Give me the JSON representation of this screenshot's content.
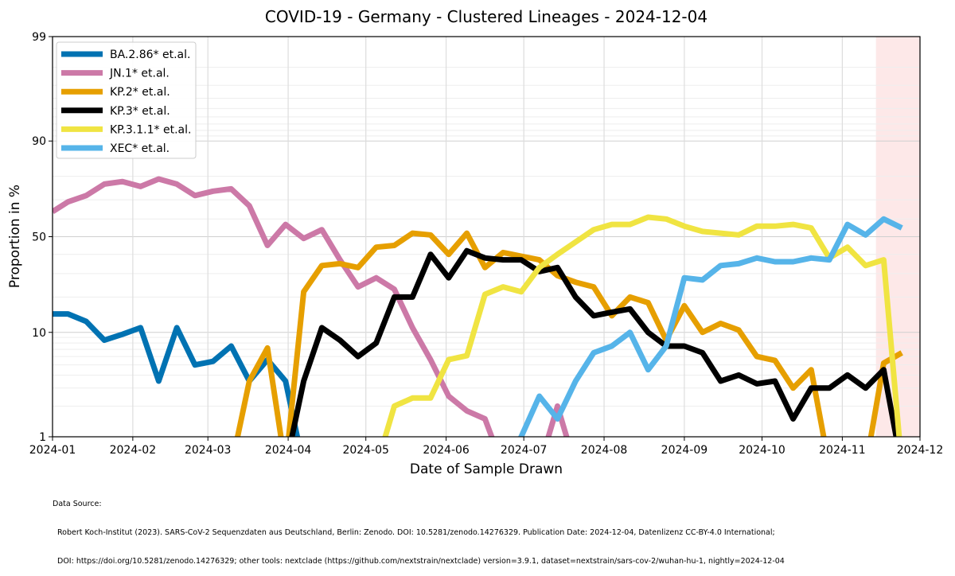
{
  "chart_data": {
    "type": "line",
    "title": "COVID-19 - Germany - Clustered Lineages - 2024-12-04",
    "xlabel": "Date of Sample Drawn",
    "ylabel": "Proportion in %",
    "y_scale": "logit",
    "y_ticks": [
      "1",
      "10",
      "50",
      "90",
      "99"
    ],
    "y_tick_values": [
      1,
      10,
      50,
      90,
      99
    ],
    "x_ticks": [
      "2024-01",
      "2024-02",
      "2024-03",
      "2024-04",
      "2024-05",
      "2024-06",
      "2024-07",
      "2024-08",
      "2024-09",
      "2024-10",
      "2024-11",
      "2024-12"
    ],
    "x_range": [
      "2024-01-01",
      "2024-12-01"
    ],
    "ylim": [
      1,
      99
    ],
    "grid": true,
    "legend_position": "top-left",
    "shaded_region": [
      "2024-11-14",
      "2024-12-01"
    ],
    "shaded_color": "#fde8e8",
    "x_dates": [
      "2024-01-01",
      "2024-01-07",
      "2024-01-14",
      "2024-01-21",
      "2024-01-28",
      "2024-02-04",
      "2024-02-11",
      "2024-02-18",
      "2024-02-25",
      "2024-03-03",
      "2024-03-10",
      "2024-03-17",
      "2024-03-24",
      "2024-03-31",
      "2024-04-07",
      "2024-04-14",
      "2024-04-21",
      "2024-04-28",
      "2024-05-05",
      "2024-05-12",
      "2024-05-19",
      "2024-05-26",
      "2024-06-02",
      "2024-06-09",
      "2024-06-16",
      "2024-06-23",
      "2024-06-30",
      "2024-07-07",
      "2024-07-14",
      "2024-07-21",
      "2024-07-28",
      "2024-08-04",
      "2024-08-11",
      "2024-08-18",
      "2024-08-25",
      "2024-09-01",
      "2024-09-08",
      "2024-09-15",
      "2024-09-22",
      "2024-09-29",
      "2024-10-06",
      "2024-10-13",
      "2024-10-20",
      "2024-10-27",
      "2024-11-03",
      "2024-11-10",
      "2024-11-17",
      "2024-11-24"
    ],
    "series": [
      {
        "name": "BA.2.86* et.al.",
        "color": "#0072b2",
        "values": [
          14.5,
          14.5,
          12.5,
          8.5,
          9.6,
          11,
          3.5,
          11,
          5,
          5.4,
          7.5,
          3.5,
          5.6,
          3.5,
          null,
          null,
          null,
          null,
          null,
          null,
          null,
          null,
          null,
          null,
          null,
          null,
          null,
          null,
          null,
          null,
          null,
          null,
          null,
          null,
          null,
          null,
          null,
          null,
          null,
          null,
          null,
          null,
          null,
          null,
          null,
          null,
          null,
          null
        ]
      },
      {
        "name": "JN.1* et.al.",
        "color": "#cc79a7",
        "values": [
          64,
          69,
          72,
          77,
          78,
          76,
          79,
          77,
          72,
          74,
          75,
          67,
          45,
          57,
          49,
          54,
          37,
          24,
          28,
          23,
          11,
          5.6,
          2.5,
          1.8,
          1.5,
          null,
          null,
          null,
          2.0,
          null,
          null,
          null,
          null,
          null,
          null,
          null,
          null,
          null,
          null,
          null,
          null,
          null,
          null,
          null,
          null,
          null,
          null,
          null
        ]
      },
      {
        "name": "KP.2* et.al.",
        "color": "#e69f00",
        "values": [
          null,
          null,
          null,
          null,
          null,
          null,
          null,
          null,
          null,
          null,
          null,
          3.5,
          7.2,
          null,
          22,
          34,
          35,
          33,
          44,
          45,
          52,
          51,
          40,
          52,
          33,
          41,
          39,
          37,
          29,
          26,
          24,
          14,
          20,
          18,
          8.5,
          17,
          10,
          12,
          10.5,
          6.0,
          5.5,
          3.0,
          4.5,
          null,
          null,
          null,
          5.2,
          6.5
        ]
      },
      {
        "name": "KP.3* et.al.",
        "color": "#000000",
        "values": [
          null,
          null,
          null,
          null,
          null,
          null,
          null,
          null,
          null,
          null,
          null,
          null,
          null,
          null,
          3.5,
          11,
          8.5,
          6.0,
          8.0,
          20,
          20,
          40,
          28,
          42,
          38,
          37,
          37,
          31,
          33,
          20,
          14,
          15,
          16,
          10,
          7.5,
          7.5,
          6.5,
          3.5,
          4.0,
          3.3,
          3.5,
          1.5,
          3.0,
          3.0,
          4.0,
          3.0,
          4.5,
          null
        ]
      },
      {
        "name": "KP.3.1.1* et.al.",
        "color": "#f0e442",
        "values": [
          null,
          null,
          null,
          null,
          null,
          null,
          null,
          null,
          null,
          null,
          null,
          null,
          null,
          null,
          null,
          null,
          null,
          null,
          null,
          2.0,
          2.4,
          2.4,
          5.6,
          6.1,
          21,
          24,
          22,
          33,
          40,
          47,
          54,
          57,
          57,
          61,
          60,
          56,
          53,
          52,
          51,
          56,
          56,
          57,
          55,
          38,
          44,
          34,
          37,
          null
        ]
      },
      {
        "name": "XEC* et.al.",
        "color": "#56b4e9",
        "values": [
          null,
          null,
          null,
          null,
          null,
          null,
          null,
          null,
          null,
          null,
          null,
          null,
          null,
          null,
          null,
          null,
          null,
          null,
          null,
          null,
          null,
          null,
          null,
          null,
          null,
          null,
          1.0,
          2.5,
          1.5,
          3.5,
          6.5,
          7.5,
          10,
          4.5,
          7.5,
          28,
          27,
          34,
          35,
          38,
          36,
          36,
          38,
          37,
          57,
          51,
          60,
          55
        ]
      }
    ]
  },
  "data_source": {
    "heading": "Data Source:",
    "line1": "Robert Koch-Institut (2023). SARS-CoV-2 Sequenzdaten aus Deutschland, Berlin: Zenodo. DOI: 10.5281/zenodo.14276329. Publication Date: 2024-12-04, Datenlizenz CC-BY-4.0 International;",
    "line2": "DOI: https://doi.org/10.5281/zenodo.14276329; other tools: nextclade (https://github.com/nextstrain/nextclade) version=3.9.1, dataset=nextstrain/sars-cov-2/wuhan-hu-1, nightly=2024-12-04"
  }
}
